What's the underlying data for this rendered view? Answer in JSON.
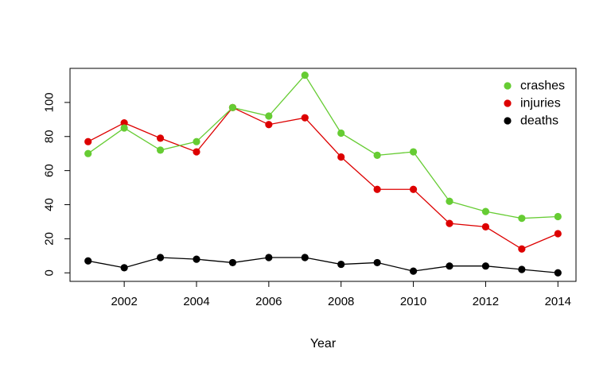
{
  "chart_data": {
    "type": "line",
    "title": "",
    "xlabel": "Year",
    "ylabel": "",
    "x": [
      2001,
      2002,
      2003,
      2004,
      2005,
      2006,
      2007,
      2008,
      2009,
      2010,
      2011,
      2012,
      2013,
      2014
    ],
    "xticks": [
      2002,
      2004,
      2006,
      2008,
      2010,
      2012,
      2014
    ],
    "yticks": [
      0,
      20,
      40,
      60,
      80,
      100
    ],
    "xlim": [
      2000.5,
      2014.5
    ],
    "ylim": [
      -5,
      120
    ],
    "grid": false,
    "legend_position": "top-right",
    "series": [
      {
        "name": "crashes",
        "color": "#66cc33",
        "values": [
          70,
          85,
          72,
          77,
          97,
          92,
          116,
          82,
          69,
          71,
          42,
          36,
          32,
          33
        ]
      },
      {
        "name": "injuries",
        "color": "#dd0000",
        "values": [
          77,
          88,
          79,
          71,
          97,
          87,
          91,
          68,
          49,
          49,
          29,
          27,
          14,
          23
        ]
      },
      {
        "name": "deaths",
        "color": "#000000",
        "values": [
          7,
          3,
          9,
          8,
          6,
          9,
          9,
          5,
          6,
          1,
          4,
          4,
          2,
          0
        ]
      }
    ]
  }
}
